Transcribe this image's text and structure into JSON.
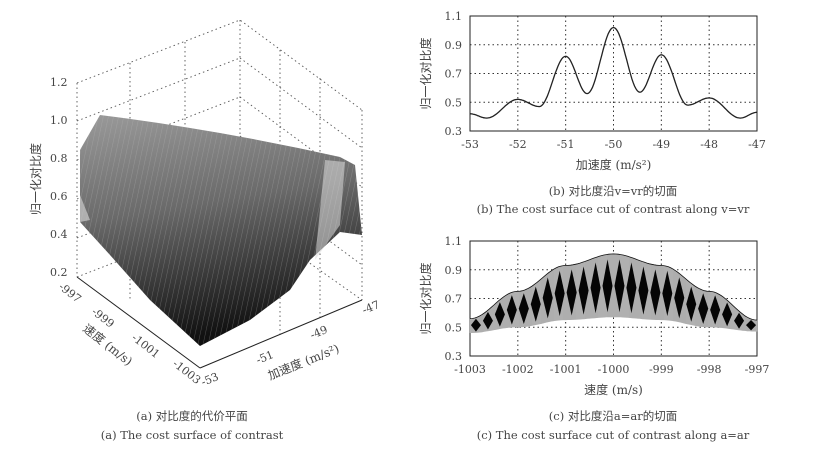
{
  "chart_data": [
    {
      "id": "a",
      "type": "surface3d",
      "caption_cn": "(a) 对比度的代价平面",
      "caption_en": "(a) The cost surface of contrast",
      "zlabel": "归一化对比度",
      "xlabel": "速度 (m/s)",
      "ylabel": "加速度 (m/s²)",
      "zticks": [
        "0.2",
        "0.4",
        "0.6",
        "0.8",
        "1.0",
        "1.2"
      ],
      "xticks": [
        "-997",
        "-999",
        "-1001",
        "-1003"
      ],
      "yticks": [
        "-53",
        "-51",
        "-49",
        "-47"
      ],
      "zlim": [
        0.2,
        1.2
      ],
      "xlim": [
        -1003,
        -997
      ],
      "ylim": [
        -53,
        -47
      ],
      "grid": true
    },
    {
      "id": "b",
      "type": "line",
      "caption_cn": "(b) 对比度沿v=vr的切面",
      "caption_en": "(b) The cost surface cut of contrast along v=vr",
      "xlabel": "加速度 (m/s²)",
      "ylabel": "归一化对比度",
      "xlim": [
        -53,
        -47
      ],
      "ylim": [
        0.3,
        1.1
      ],
      "xticks": [
        "-53",
        "-52",
        "-51",
        "-50",
        "-49",
        "-48",
        "-47"
      ],
      "yticks": [
        "0.3",
        "0.5",
        "0.7",
        "0.9",
        "1.1"
      ],
      "grid": true,
      "x": [
        -53,
        -52.65,
        -52,
        -51.55,
        -51,
        -50.55,
        -50,
        -49.45,
        -49,
        -48.45,
        -48,
        -47.35,
        -47
      ],
      "y": [
        0.42,
        0.39,
        0.52,
        0.47,
        0.82,
        0.56,
        1.02,
        0.57,
        0.83,
        0.48,
        0.53,
        0.39,
        0.43
      ]
    },
    {
      "id": "c",
      "type": "area",
      "caption_cn": "(c) 对比度沿a=ar的切面",
      "caption_en": "(c) The cost surface cut of contrast along a=ar",
      "xlabel": "速度 (m/s)",
      "ylabel": "归一化对比度",
      "xlim": [
        -1003,
        -997
      ],
      "ylim": [
        0.3,
        1.1
      ],
      "xticks": [
        "-1003",
        "-1002",
        "-1001",
        "-1000",
        "-999",
        "-998",
        "-997"
      ],
      "yticks": [
        "0.3",
        "0.5",
        "0.7",
        "0.9",
        "1.1"
      ],
      "grid": true,
      "x": [
        -1003,
        -1002,
        -1001,
        -1000,
        -999,
        -998,
        -997
      ],
      "upper": [
        0.56,
        0.75,
        0.93,
        1.01,
        0.93,
        0.75,
        0.55
      ],
      "lower": [
        0.46,
        0.5,
        0.55,
        0.57,
        0.55,
        0.5,
        0.47
      ],
      "oscillation_lobes": 24
    }
  ]
}
